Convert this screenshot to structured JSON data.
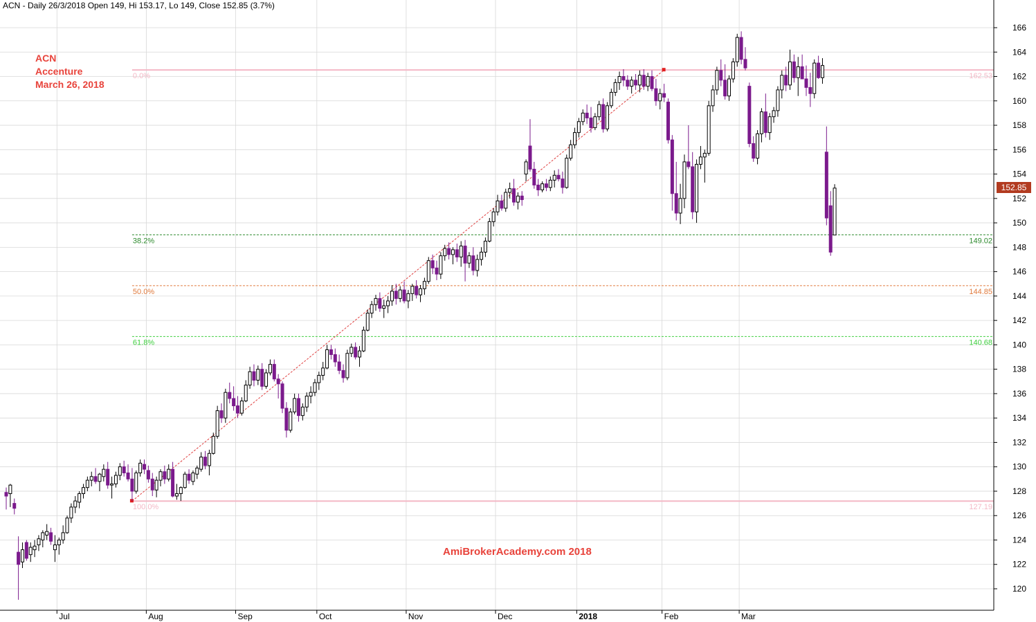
{
  "header": "ACN - Daily 26/3/2018 Open 149, Hi 153.17, Lo 149, Close 152.85 (3.7%)",
  "annotation": {
    "line1": "ACN",
    "line2": "Accenture",
    "line3": "March 26, 2018"
  },
  "watermark": "AmiBrokerAcademy.com  2018",
  "last_price_label": "152.85",
  "colors": {
    "down_candle": "#7b1a8c",
    "up_candle": "#ffffff",
    "wick": "#000000",
    "fib_extreme": "#f4b8c6",
    "fib_382": "#2e8b2e",
    "fib_50": "#e07a3c",
    "fib_618": "#3fcf3f",
    "trend_line": "#e04040",
    "annotation_text": "#e8433b",
    "grid": "#d8d8d8"
  },
  "chart_data": {
    "type": "candlestick",
    "y_axis": {
      "range": [
        118.5,
        167.0
      ],
      "ticks": [
        120,
        122,
        124,
        126,
        128,
        130,
        132,
        134,
        136,
        138,
        140,
        142,
        144,
        146,
        148,
        150,
        152,
        154,
        156,
        158,
        160,
        162,
        164,
        166
      ],
      "position": "right"
    },
    "x_axis": {
      "labels": [
        {
          "label": "Jul",
          "bar": 13
        },
        {
          "label": "Aug",
          "bar": 35
        },
        {
          "label": "Sep",
          "bar": 57
        },
        {
          "label": "Oct",
          "bar": 77
        },
        {
          "label": "Nov",
          "bar": 99
        },
        {
          "label": "Dec",
          "bar": 121
        },
        {
          "label": "2018",
          "bar": 141,
          "bold": true
        },
        {
          "label": "Feb",
          "bar": 162
        },
        {
          "label": "Mar",
          "bar": 181
        }
      ]
    },
    "fib_levels": [
      {
        "pct": "0.0%",
        "price": 162.53,
        "price_label": "162.53",
        "style": "extreme"
      },
      {
        "pct": "38.2%",
        "price": 149.02,
        "price_label": "149.02",
        "style": "382"
      },
      {
        "pct": "50.0%",
        "price": 144.85,
        "price_label": "144.85",
        "style": "50"
      },
      {
        "pct": "61.8%",
        "price": 140.68,
        "price_label": "140.68",
        "style": "618"
      },
      {
        "pct": "100.0%",
        "price": 127.19,
        "price_label": "127.19",
        "style": "extreme"
      }
    ],
    "trend_line": {
      "from": {
        "bar": 31,
        "price": 127.19
      },
      "to": {
        "bar": 162,
        "price": 162.53
      }
    },
    "candles": [
      [
        127.9,
        128.3,
        126.5,
        127.6
      ],
      [
        127.8,
        128.6,
        126.7,
        128.5
      ],
      [
        127.0,
        127.4,
        126.1,
        126.6
      ],
      [
        123.0,
        124.3,
        119.1,
        122.0
      ],
      [
        122.2,
        123.8,
        121.7,
        123.2
      ],
      [
        123.8,
        124.0,
        122.3,
        122.5
      ],
      [
        122.8,
        123.8,
        122.2,
        123.4
      ],
      [
        123.2,
        124.0,
        122.6,
        123.5
      ],
      [
        123.6,
        124.4,
        123.1,
        124.1
      ],
      [
        124.0,
        124.8,
        123.4,
        124.6
      ],
      [
        124.4,
        125.3,
        124.0,
        124.7
      ],
      [
        124.6,
        125.0,
        123.6,
        123.9
      ],
      [
        123.2,
        124.4,
        122.2,
        123.6
      ],
      [
        123.6,
        124.2,
        122.8,
        124.0
      ],
      [
        124.0,
        125.2,
        123.7,
        124.6
      ],
      [
        124.6,
        126.0,
        124.5,
        125.8
      ],
      [
        125.8,
        127.0,
        125.4,
        126.7
      ],
      [
        126.7,
        127.6,
        126.2,
        127.2
      ],
      [
        127.1,
        128.0,
        126.6,
        127.8
      ],
      [
        127.8,
        128.6,
        127.4,
        128.3
      ],
      [
        128.3,
        129.2,
        128.0,
        128.9
      ],
      [
        128.9,
        129.6,
        128.4,
        129.2
      ],
      [
        129.2,
        129.9,
        128.6,
        128.8
      ],
      [
        128.8,
        129.5,
        128.0,
        129.4
      ],
      [
        129.2,
        130.2,
        128.8,
        129.8
      ],
      [
        129.8,
        130.4,
        128.2,
        128.5
      ],
      [
        128.5,
        129.2,
        127.4,
        128.6
      ],
      [
        128.6,
        129.6,
        128.3,
        129.3
      ],
      [
        129.3,
        130.3,
        128.9,
        130.0
      ],
      [
        130.0,
        130.5,
        129.2,
        129.5
      ],
      [
        129.5,
        130.2,
        128.8,
        129.0
      ],
      [
        129.0,
        129.9,
        127.2,
        128.0
      ],
      [
        128.0,
        129.7,
        127.8,
        129.5
      ],
      [
        129.5,
        130.6,
        129.2,
        130.3
      ],
      [
        130.2,
        130.6,
        129.4,
        129.8
      ],
      [
        129.7,
        130.1,
        128.7,
        129.0
      ],
      [
        129.0,
        129.5,
        127.6,
        128.1
      ],
      [
        128.1,
        129.2,
        127.5,
        128.9
      ],
      [
        128.9,
        129.8,
        128.4,
        129.6
      ],
      [
        129.6,
        130.1,
        128.6,
        129.0
      ],
      [
        129.0,
        130.2,
        128.8,
        129.8
      ],
      [
        129.8,
        130.4,
        127.5,
        127.6
      ],
      [
        127.6,
        128.6,
        127.3,
        127.8
      ],
      [
        127.8,
        128.4,
        127.2,
        128.3
      ],
      [
        128.3,
        129.6,
        128.2,
        129.4
      ],
      [
        129.4,
        129.8,
        128.6,
        128.9
      ],
      [
        128.8,
        129.7,
        128.5,
        129.5
      ],
      [
        129.4,
        130.1,
        129.0,
        129.9
      ],
      [
        129.8,
        131.2,
        129.6,
        130.8
      ],
      [
        130.8,
        131.3,
        129.8,
        130.1
      ],
      [
        130.1,
        131.4,
        129.3,
        131.1
      ],
      [
        131.1,
        132.8,
        131.0,
        132.5
      ],
      [
        132.5,
        135.0,
        132.3,
        134.6
      ],
      [
        134.6,
        135.2,
        133.6,
        134.0
      ],
      [
        134.0,
        136.4,
        133.6,
        136.1
      ],
      [
        136.1,
        136.9,
        135.2,
        135.6
      ],
      [
        135.6,
        136.6,
        134.6,
        135.0
      ],
      [
        135.0,
        135.8,
        134.0,
        134.4
      ],
      [
        134.4,
        135.7,
        134.2,
        135.4
      ],
      [
        135.4,
        137.1,
        135.3,
        136.7
      ],
      [
        136.7,
        138.2,
        136.4,
        137.8
      ],
      [
        137.8,
        138.4,
        136.6,
        137.1
      ],
      [
        137.1,
        138.3,
        136.7,
        138.0
      ],
      [
        138.0,
        138.5,
        136.3,
        136.6
      ],
      [
        136.6,
        138.0,
        136.4,
        137.7
      ],
      [
        137.7,
        138.8,
        137.5,
        138.4
      ],
      [
        138.4,
        138.8,
        137.0,
        137.2
      ],
      [
        137.2,
        137.6,
        135.6,
        136.8
      ],
      [
        136.8,
        137.0,
        134.4,
        134.8
      ],
      [
        134.8,
        135.3,
        132.4,
        133.0
      ],
      [
        133.0,
        134.8,
        132.8,
        134.5
      ],
      [
        134.5,
        136.0,
        134.3,
        135.6
      ],
      [
        135.6,
        136.0,
        133.7,
        134.2
      ],
      [
        134.2,
        135.2,
        133.8,
        134.9
      ],
      [
        134.9,
        136.1,
        134.5,
        135.8
      ],
      [
        135.8,
        136.6,
        135.2,
        136.1
      ],
      [
        136.1,
        137.2,
        135.8,
        136.9
      ],
      [
        136.9,
        137.8,
        136.3,
        137.5
      ],
      [
        137.5,
        138.6,
        137.1,
        138.1
      ],
      [
        138.1,
        140.0,
        138.0,
        139.6
      ],
      [
        139.6,
        140.0,
        138.8,
        139.2
      ],
      [
        139.2,
        139.7,
        138.2,
        138.6
      ],
      [
        138.6,
        139.2,
        137.6,
        137.9
      ],
      [
        137.9,
        138.4,
        136.9,
        137.3
      ],
      [
        137.3,
        139.6,
        137.1,
        139.3
      ],
      [
        139.3,
        140.1,
        139.0,
        139.8
      ],
      [
        139.8,
        140.2,
        138.8,
        139.0
      ],
      [
        139.0,
        139.9,
        138.2,
        139.5
      ],
      [
        139.5,
        141.5,
        139.4,
        141.2
      ],
      [
        141.2,
        142.9,
        141.1,
        142.6
      ],
      [
        142.6,
        143.6,
        142.2,
        143.3
      ],
      [
        143.3,
        144.1,
        142.8,
        143.8
      ],
      [
        143.8,
        144.3,
        142.7,
        143.0
      ],
      [
        143.0,
        143.7,
        142.2,
        143.2
      ],
      [
        143.2,
        144.0,
        142.6,
        143.6
      ],
      [
        143.6,
        144.9,
        143.2,
        144.4
      ],
      [
        144.4,
        145.0,
        143.3,
        143.8
      ],
      [
        143.8,
        144.8,
        143.5,
        144.5
      ],
      [
        144.5,
        145.2,
        143.4,
        143.6
      ],
      [
        143.6,
        144.5,
        143.0,
        144.2
      ],
      [
        144.2,
        145.0,
        143.6,
        144.8
      ],
      [
        144.8,
        145.3,
        143.8,
        144.1
      ],
      [
        144.1,
        144.9,
        143.5,
        144.6
      ],
      [
        144.6,
        145.5,
        144.1,
        145.2
      ],
      [
        145.2,
        147.2,
        145.0,
        146.9
      ],
      [
        146.9,
        147.4,
        145.8,
        146.3
      ],
      [
        146.3,
        146.9,
        145.3,
        145.8
      ],
      [
        145.8,
        147.6,
        145.4,
        147.3
      ],
      [
        147.3,
        148.2,
        146.9,
        147.9
      ],
      [
        147.9,
        148.4,
        147.0,
        147.4
      ],
      [
        147.4,
        148.0,
        146.6,
        147.8
      ],
      [
        147.8,
        148.3,
        146.8,
        147.2
      ],
      [
        147.2,
        148.5,
        146.4,
        148.1
      ],
      [
        148.1,
        148.6,
        145.2,
        146.7
      ],
      [
        146.7,
        147.6,
        146.3,
        147.3
      ],
      [
        147.3,
        148.0,
        145.7,
        146.1
      ],
      [
        146.1,
        147.4,
        145.6,
        147.0
      ],
      [
        147.0,
        148.0,
        146.5,
        147.6
      ],
      [
        147.6,
        148.8,
        147.2,
        148.5
      ],
      [
        148.5,
        150.4,
        148.4,
        150.1
      ],
      [
        150.1,
        151.2,
        149.7,
        150.9
      ],
      [
        150.9,
        152.3,
        150.6,
        151.8
      ],
      [
        151.8,
        152.3,
        151.0,
        151.2
      ],
      [
        151.2,
        152.8,
        150.9,
        152.5
      ],
      [
        152.5,
        153.3,
        152.0,
        152.8
      ],
      [
        152.8,
        153.6,
        151.4,
        151.7
      ],
      [
        151.7,
        152.5,
        151.1,
        152.2
      ],
      [
        152.2,
        152.6,
        151.4,
        151.9
      ],
      [
        154.0,
        155.2,
        153.4,
        155.0
      ],
      [
        156.3,
        158.5,
        154.2,
        154.4
      ],
      [
        154.4,
        155.0,
        152.8,
        153.1
      ],
      [
        153.1,
        153.6,
        152.2,
        152.7
      ],
      [
        152.7,
        153.4,
        152.5,
        153.2
      ],
      [
        153.2,
        153.6,
        152.6,
        152.9
      ],
      [
        152.9,
        153.8,
        152.6,
        153.5
      ],
      [
        153.5,
        154.3,
        152.9,
        153.9
      ],
      [
        153.9,
        154.4,
        153.4,
        153.6
      ],
      [
        153.6,
        154.2,
        152.4,
        152.9
      ],
      [
        152.9,
        155.6,
        152.8,
        155.3
      ],
      [
        155.3,
        156.8,
        155.1,
        156.4
      ],
      [
        156.4,
        157.8,
        156.1,
        157.4
      ],
      [
        157.4,
        158.6,
        157.0,
        158.3
      ],
      [
        158.3,
        159.3,
        158.0,
        159.0
      ],
      [
        159.0,
        159.7,
        158.1,
        158.6
      ],
      [
        158.6,
        159.5,
        157.4,
        157.8
      ],
      [
        157.8,
        159.0,
        157.6,
        158.7
      ],
      [
        158.7,
        160.0,
        158.4,
        159.7
      ],
      [
        159.7,
        160.2,
        157.4,
        157.7
      ],
      [
        157.7,
        159.9,
        157.5,
        159.6
      ],
      [
        159.6,
        161.0,
        159.4,
        160.7
      ],
      [
        160.7,
        161.8,
        160.4,
        161.5
      ],
      [
        161.5,
        162.4,
        160.9,
        162.0
      ],
      [
        162.0,
        162.6,
        161.2,
        161.7
      ],
      [
        161.7,
        162.1,
        160.9,
        161.2
      ],
      [
        161.2,
        162.0,
        160.6,
        161.7
      ],
      [
        161.7,
        162.2,
        160.9,
        161.3
      ],
      [
        161.3,
        162.5,
        160.7,
        162.1
      ],
      [
        162.1,
        162.6,
        160.9,
        161.2
      ],
      [
        161.2,
        162.3,
        160.8,
        162.0
      ],
      [
        162.0,
        162.5,
        160.8,
        161.0
      ],
      [
        161.0,
        161.8,
        159.6,
        160.0
      ],
      [
        160.0,
        161.0,
        159.3,
        160.6
      ],
      [
        160.6,
        161.4,
        159.9,
        160.3
      ],
      [
        159.9,
        160.2,
        156.5,
        156.8
      ],
      [
        156.8,
        157.2,
        151.0,
        152.4
      ],
      [
        152.4,
        155.0,
        150.2,
        150.8
      ],
      [
        150.8,
        153.2,
        149.9,
        152.0
      ],
      [
        152.0,
        155.6,
        151.2,
        155.0
      ],
      [
        155.0,
        158.0,
        154.4,
        154.6
      ],
      [
        154.6,
        155.8,
        150.3,
        150.9
      ],
      [
        150.9,
        155.2,
        150.0,
        154.8
      ],
      [
        154.8,
        156.3,
        154.4,
        155.4
      ],
      [
        155.4,
        156.0,
        153.3,
        155.7
      ],
      [
        155.7,
        160.0,
        155.5,
        159.6
      ],
      [
        159.6,
        161.3,
        159.1,
        160.9
      ],
      [
        160.9,
        162.8,
        160.5,
        162.5
      ],
      [
        162.5,
        163.4,
        161.2,
        161.7
      ],
      [
        161.7,
        163.0,
        160.1,
        160.4
      ],
      [
        160.4,
        162.1,
        160.0,
        161.8
      ],
      [
        161.8,
        163.5,
        161.5,
        163.2
      ],
      [
        163.2,
        165.5,
        162.8,
        165.2
      ],
      [
        165.2,
        165.7,
        163.0,
        163.4
      ],
      [
        163.4,
        164.4,
        162.5,
        162.7
      ],
      [
        161.2,
        161.5,
        156.2,
        156.5
      ],
      [
        156.5,
        157.1,
        155.0,
        155.3
      ],
      [
        155.3,
        157.6,
        154.8,
        157.3
      ],
      [
        157.3,
        159.4,
        156.6,
        159.1
      ],
      [
        159.1,
        160.6,
        157.0,
        157.4
      ],
      [
        157.4,
        159.0,
        156.8,
        158.7
      ],
      [
        158.7,
        159.5,
        158.2,
        159.2
      ],
      [
        159.2,
        161.2,
        158.7,
        160.9
      ],
      [
        160.9,
        162.5,
        160.2,
        162.1
      ],
      [
        162.1,
        162.8,
        160.8,
        161.3
      ],
      [
        161.3,
        164.2,
        160.9,
        163.2
      ],
      [
        163.2,
        163.8,
        161.5,
        161.9
      ],
      [
        161.9,
        163.6,
        160.4,
        162.8
      ],
      [
        162.8,
        163.8,
        161.8,
        161.8
      ],
      [
        161.8,
        162.9,
        160.4,
        161.1
      ],
      [
        161.1,
        162.3,
        159.5,
        160.6
      ],
      [
        160.6,
        163.4,
        160.2,
        163.1
      ],
      [
        163.1,
        163.7,
        161.8,
        161.9
      ],
      [
        161.9,
        163.5,
        161.4,
        162.9
      ],
      [
        155.8,
        157.9,
        149.8,
        150.4
      ],
      [
        151.4,
        152.6,
        147.3,
        147.6
      ],
      [
        149.0,
        153.17,
        149.0,
        152.85
      ]
    ]
  }
}
